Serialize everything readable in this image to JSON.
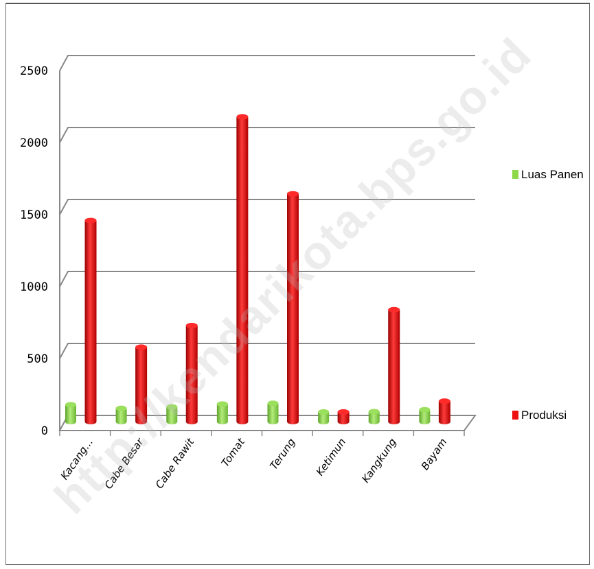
{
  "chart_data": {
    "type": "bar",
    "categories": [
      "Kacang...",
      "Cabe Besar",
      "Cabe Rawit",
      "Tomat",
      "Terung",
      "Ketimun",
      "Kangkung",
      "Bayam"
    ],
    "series": [
      {
        "name": "Luas Panen",
        "values": [
          60,
          35,
          45,
          65,
          70,
          10,
          12,
          25
        ]
      },
      {
        "name": "Produksi",
        "values": [
          1340,
          460,
          610,
          2060,
          1525,
          10,
          720,
          85
        ]
      }
    ],
    "ylim": [
      0,
      2500
    ],
    "yticks": [
      "0",
      "500",
      "1000",
      "1500",
      "2000",
      "2500"
    ],
    "grid": true,
    "legend_position": "right",
    "colors": {
      "Luas Panen": "#8ed84a",
      "Produksi": "#ee1111"
    }
  },
  "watermark": "http://kendarikota.bps.go.id"
}
